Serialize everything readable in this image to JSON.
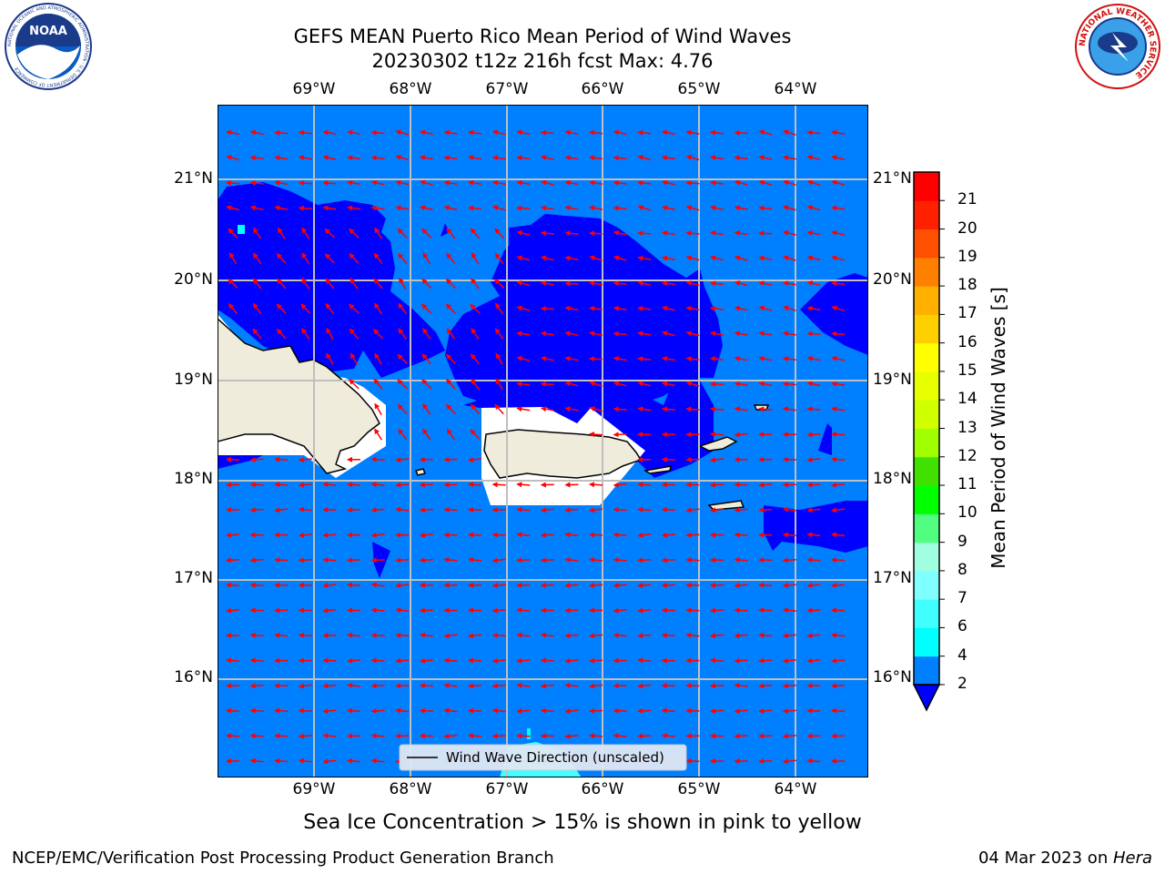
{
  "title": {
    "line1": "GEFS MEAN Puerto Rico Mean Period of Wind Waves",
    "line2": "20230302 t12z 216h fcst   Max: 4.76"
  },
  "logos": {
    "left": {
      "name": "noaa-logo",
      "text": "NOAA",
      "ring_text": "NATIONAL OCEANIC AND ATMOSPHERIC ADMINISTRATION · U.S. DEPARTMENT OF COMMERCE"
    },
    "right": {
      "name": "nws-logo",
      "ring_text": "NATIONAL WEATHER SERVICE"
    }
  },
  "map": {
    "lon_labels": [
      "69°W",
      "68°W",
      "67°W",
      "66°W",
      "65°W",
      "64°W"
    ],
    "lat_labels": [
      "21°N",
      "20°N",
      "19°N",
      "18°N",
      "17°N",
      "16°N"
    ],
    "legend": "Wind Wave Direction (unscaled)",
    "colors": {
      "water_2_4": "#0080ff",
      "below_2": "#0000ff",
      "land": "#efecdc",
      "grid": "#bfbfbf",
      "arrow": "#ff0000"
    }
  },
  "colorbar": {
    "label": "Mean Period of Wind Waves [s]",
    "ticks": [
      "2",
      "4",
      "6",
      "7",
      "8",
      "9",
      "10",
      "11",
      "12",
      "13",
      "14",
      "15",
      "16",
      "17",
      "18",
      "19",
      "20",
      "21"
    ],
    "colors": [
      "#0080ff",
      "#00ffff",
      "#40ffff",
      "#80ffff",
      "#a0ffe0",
      "#50ff80",
      "#00ff00",
      "#40e000",
      "#a0ff00",
      "#d0ff00",
      "#e8ff00",
      "#ffff00",
      "#ffd000",
      "#ffb000",
      "#ff8000",
      "#ff5000",
      "#ff2000",
      "#ff0000"
    ],
    "under_color": "#0000ff"
  },
  "bottom_note": "Sea Ice Concentration > 15% is shown in pink to yellow",
  "footer": {
    "left": "NCEP/EMC/Verification Post Processing Product Generation Branch",
    "right_date": "04 Mar 2023 on ",
    "right_host": "Hera"
  }
}
